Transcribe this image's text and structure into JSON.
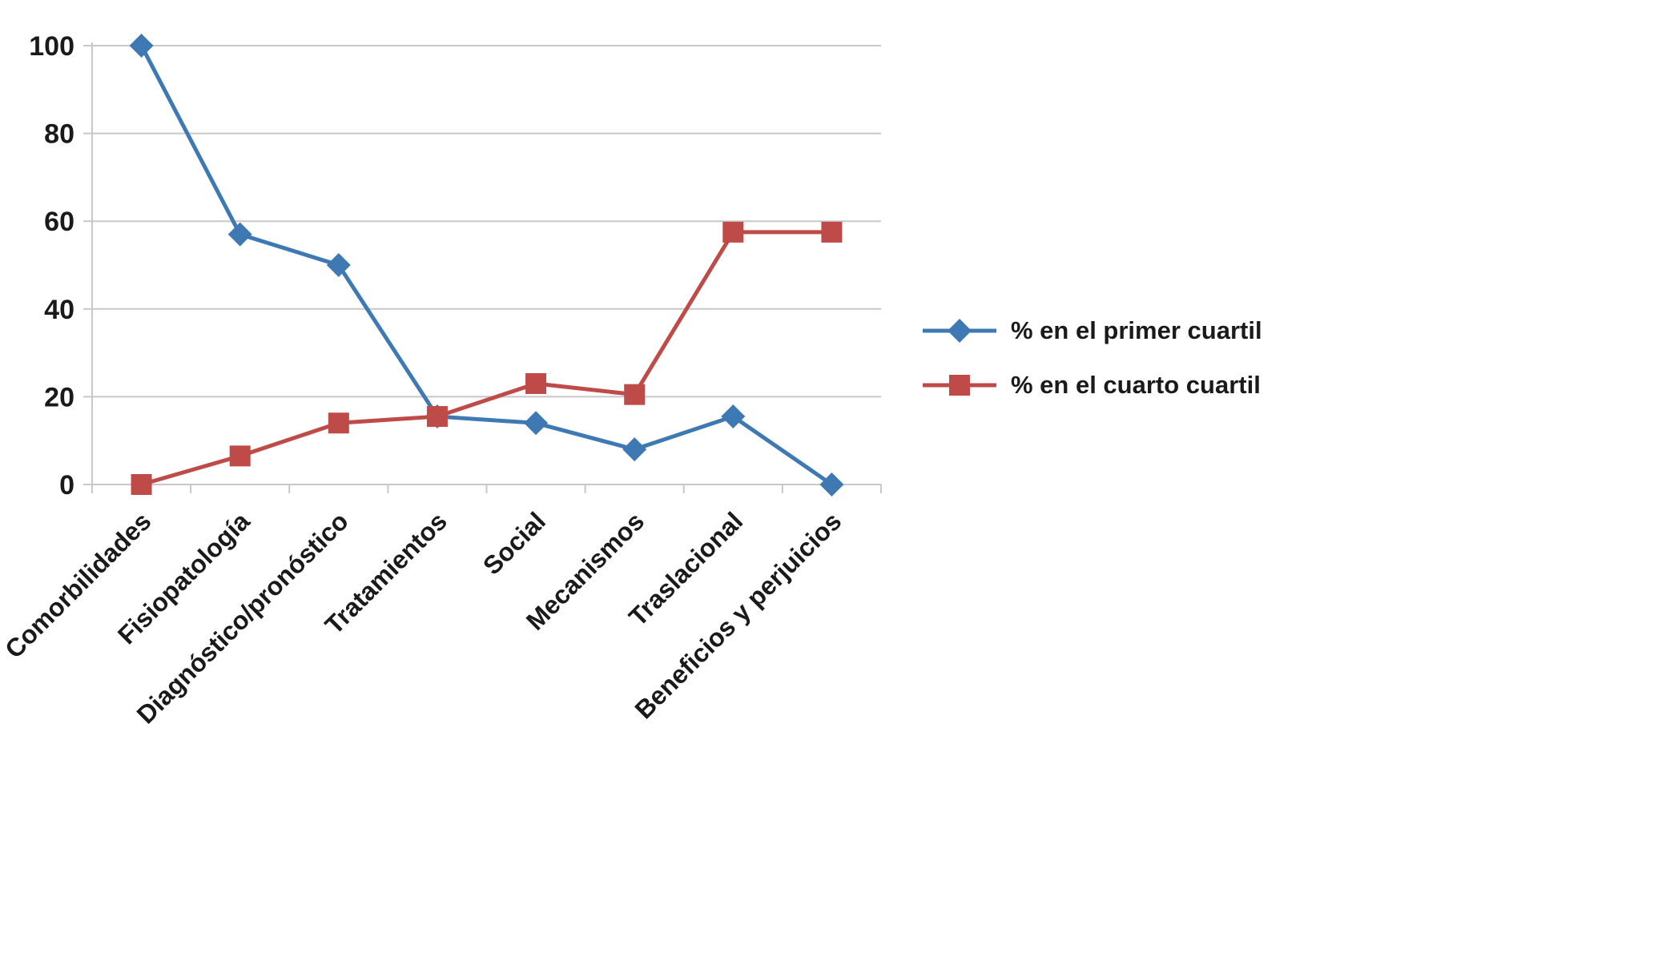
{
  "chart_data": {
    "type": "line",
    "categories": [
      "Comorbilidades",
      "Fisiopatología",
      "Diagnóstico/pronóstico",
      "Tratamientos",
      "Social",
      "Mecanismos",
      "Traslacional",
      "Beneficios y perjuicios"
    ],
    "series": [
      {
        "name": "% en el primer cuartil",
        "color": "#3E79B4",
        "marker": "diamond",
        "values": [
          100,
          57,
          50,
          15.5,
          14,
          8,
          15.5,
          0
        ]
      },
      {
        "name": "% en el cuarto cuartil",
        "color": "#BE4B48",
        "marker": "square",
        "values": [
          0,
          6.5,
          14,
          15.5,
          23,
          20.5,
          57.5,
          57.5
        ]
      }
    ],
    "title": "",
    "xlabel": "",
    "ylabel": "",
    "ylim": [
      0,
      100
    ],
    "yticks": [
      0,
      20,
      40,
      60,
      80,
      100
    ],
    "grid": true,
    "legend_position": "right",
    "grid_color": "#c8c8c8",
    "axis_color": "#c8c8c8",
    "text_color": "#1a1a1a"
  }
}
